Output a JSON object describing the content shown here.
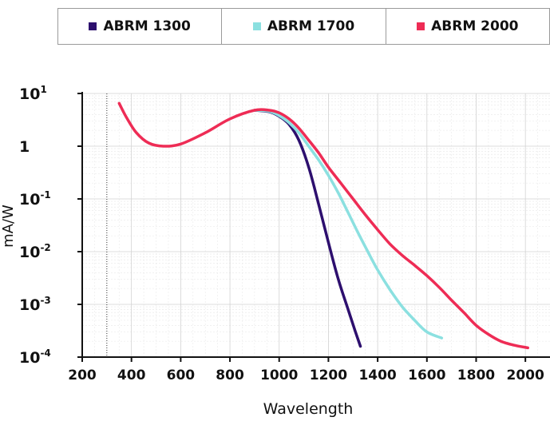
{
  "chart_data": {
    "type": "line",
    "title": "",
    "xlabel": "Wavelength",
    "ylabel": "mA/W",
    "x_scale": "linear",
    "y_scale": "log",
    "xlim": [
      200,
      2100
    ],
    "ylim": [
      0.0001,
      10
    ],
    "x_ticks": [
      "200",
      "400",
      "600",
      "800",
      "1000",
      "1200",
      "1400",
      "1600",
      "1800",
      "2000"
    ],
    "y_ticks": [
      {
        "value": 10,
        "base": "10",
        "exp": "1"
      },
      {
        "value": 1,
        "base": "1",
        "exp": ""
      },
      {
        "value": 0.1,
        "base": "10",
        "exp": "-1"
      },
      {
        "value": 0.01,
        "base": "10",
        "exp": "-2"
      },
      {
        "value": 0.001,
        "base": "10",
        "exp": "-3"
      },
      {
        "value": 0.0001,
        "base": "10",
        "exp": "-4"
      }
    ],
    "grid": true,
    "legend_position": "top",
    "series": [
      {
        "name": "ABRM 1300",
        "color": "#2d0f6e",
        "points": [
          [
            900,
            4.8
          ],
          [
            960,
            4.5
          ],
          [
            1000,
            3.7
          ],
          [
            1040,
            2.6
          ],
          [
            1080,
            1.3
          ],
          [
            1120,
            0.4
          ],
          [
            1160,
            0.08
          ],
          [
            1200,
            0.015
          ],
          [
            1240,
            0.003
          ],
          [
            1280,
            0.0008
          ],
          [
            1310,
            0.0003
          ],
          [
            1330,
            0.00016
          ]
        ]
      },
      {
        "name": "ABRM 1700",
        "color": "#8be0e0",
        "points": [
          [
            900,
            4.8
          ],
          [
            960,
            4.6
          ],
          [
            1000,
            3.8
          ],
          [
            1040,
            2.8
          ],
          [
            1080,
            1.8
          ],
          [
            1120,
            1.0
          ],
          [
            1160,
            0.55
          ],
          [
            1200,
            0.28
          ],
          [
            1240,
            0.13
          ],
          [
            1280,
            0.055
          ],
          [
            1320,
            0.023
          ],
          [
            1360,
            0.01
          ],
          [
            1400,
            0.0045
          ],
          [
            1450,
            0.0019
          ],
          [
            1500,
            0.0009
          ],
          [
            1550,
            0.0005
          ],
          [
            1600,
            0.0003
          ],
          [
            1660,
            0.00023
          ]
        ]
      },
      {
        "name": "ABRM 2000",
        "color": "#ee2c55",
        "points": [
          [
            350,
            6.5
          ],
          [
            380,
            3.5
          ],
          [
            420,
            1.8
          ],
          [
            470,
            1.15
          ],
          [
            530,
            1.0
          ],
          [
            600,
            1.1
          ],
          [
            700,
            1.8
          ],
          [
            800,
            3.3
          ],
          [
            900,
            4.8
          ],
          [
            960,
            4.8
          ],
          [
            1000,
            4.3
          ],
          [
            1040,
            3.3
          ],
          [
            1080,
            2.2
          ],
          [
            1120,
            1.3
          ],
          [
            1160,
            0.75
          ],
          [
            1200,
            0.4
          ],
          [
            1250,
            0.2
          ],
          [
            1300,
            0.1
          ],
          [
            1350,
            0.05
          ],
          [
            1400,
            0.026
          ],
          [
            1450,
            0.014
          ],
          [
            1500,
            0.0085
          ],
          [
            1550,
            0.0055
          ],
          [
            1600,
            0.0035
          ],
          [
            1650,
            0.0021
          ],
          [
            1700,
            0.0012
          ],
          [
            1750,
            0.0007
          ],
          [
            1800,
            0.0004
          ],
          [
            1850,
            0.00027
          ],
          [
            1900,
            0.0002
          ],
          [
            1950,
            0.00017
          ],
          [
            2010,
            0.00015
          ]
        ]
      }
    ]
  }
}
